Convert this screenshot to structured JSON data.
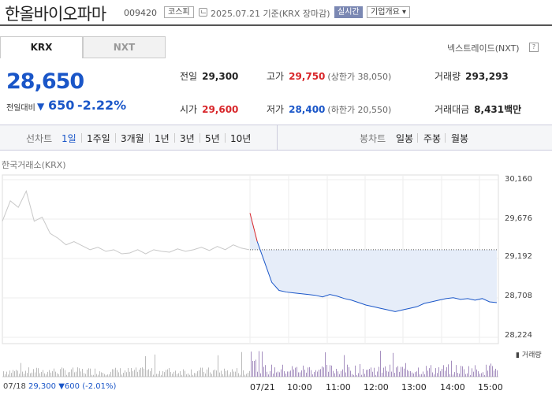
{
  "header": {
    "stock_name": "한올바이오파마",
    "stock_code": "009420",
    "market_badge": "코스피",
    "date_text": "2025.07.21 기준(KRX 장마감)",
    "realtime_label": "실시간",
    "company_label": "기업개요"
  },
  "tabs": {
    "krx": "KRX",
    "nxt": "NXT",
    "nxt_trade": "넥스트레이드(NXT)",
    "help": "?"
  },
  "price": {
    "current": "28,650",
    "change_label": "전일대비",
    "change_arrow": "▼",
    "change_amount": "650",
    "change_pct": "-2.22%"
  },
  "stats": {
    "prev": {
      "label": "전일",
      "value": "29,300"
    },
    "high": {
      "label": "고가",
      "value": "29,750",
      "sub": "(상한가 38,050)"
    },
    "volume": {
      "label": "거래량",
      "value": "293,293"
    },
    "open": {
      "label": "시가",
      "value": "29,600"
    },
    "low": {
      "label": "저가",
      "value": "28,400",
      "sub": "(하한가 20,550)"
    },
    "amount": {
      "label": "거래대금",
      "value": "8,431",
      "unit": "백만"
    }
  },
  "period_bar": {
    "line_label": "선차트",
    "line_items": [
      "1일",
      "1주일",
      "3개월",
      "1년",
      "3년",
      "5년",
      "10년"
    ],
    "active": "1일",
    "candle_label": "봉차트",
    "candle_items": [
      "일봉",
      "주봉",
      "월봉"
    ]
  },
  "colors": {
    "up": "#d8262a",
    "down": "#1a56c8",
    "fill": "#e6edf9",
    "prev_line": "#c8c8c8"
  },
  "chart_data": {
    "type": "line",
    "exchange_label": "한국거래소(KRX)",
    "y_ticks": [
      "30,160",
      "29,676",
      "29,192",
      "28,708",
      "28,224"
    ],
    "ylim": [
      28224,
      30160
    ],
    "x_ticks": [
      "07/18",
      "07/21",
      "10:00",
      "11:00",
      "12:00",
      "13:00",
      "14:00",
      "15:00"
    ],
    "volume_label": "거래량",
    "prev_close": 29300,
    "prev_day_info": {
      "date": "07/18",
      "price": "29,300",
      "arrow": "▼",
      "change": "600",
      "pct": "(-2.01%)"
    },
    "prev_day_series": [
      29650,
      29900,
      29820,
      30020,
      29650,
      29700,
      29500,
      29440,
      29360,
      29400,
      29350,
      29300,
      29330,
      29280,
      29300,
      29250,
      29260,
      29300,
      29250,
      29300,
      29280,
      29270,
      29310,
      29280,
      29300,
      29330,
      29290,
      29340,
      29300,
      29360,
      29320,
      29300
    ],
    "today_series": [
      29750,
      29400,
      29150,
      28900,
      28800,
      28780,
      28770,
      28760,
      28750,
      28740,
      28720,
      28750,
      28730,
      28700,
      28680,
      28650,
      28620,
      28600,
      28580,
      28560,
      28540,
      28560,
      28580,
      28600,
      28640,
      28660,
      28680,
      28700,
      28710,
      28690,
      28700,
      28680,
      28700,
      28660,
      28650
    ]
  }
}
